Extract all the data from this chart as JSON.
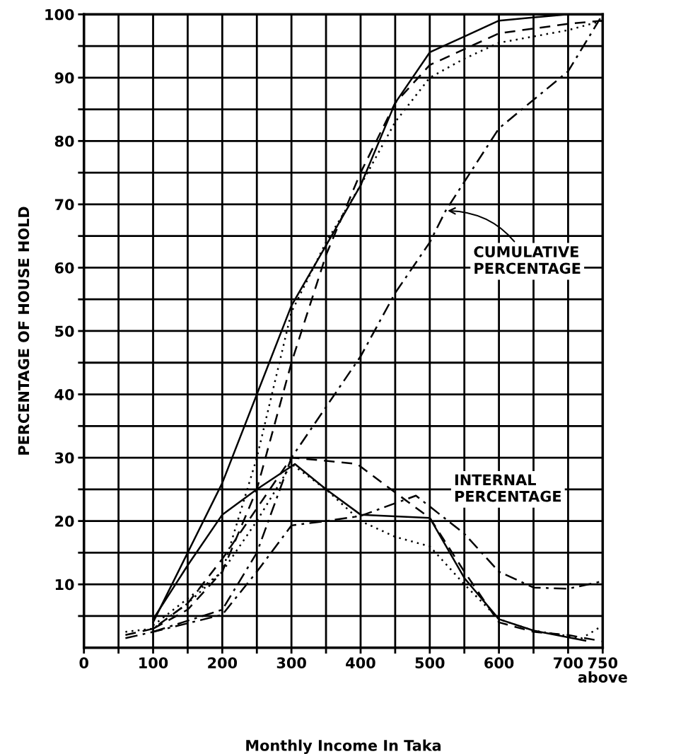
{
  "chart_data": {
    "type": "line",
    "xlabel": "Monthly Income In Taka",
    "ylabel": "PERCENTAGE OF HOUSE HOLD",
    "xlim": [
      0,
      750
    ],
    "ylim": [
      0,
      100
    ],
    "xticks": [
      0,
      {
        "value": 50,
        "label": null
      },
      100,
      {
        "value": 150,
        "label": null
      },
      200,
      {
        "value": 250,
        "label": null
      },
      300,
      {
        "value": 350,
        "label": null
      },
      400,
      {
        "value": 450,
        "label": null
      },
      500,
      {
        "value": 550,
        "label": null
      },
      600,
      {
        "value": 650,
        "label": null
      },
      700,
      {
        "value": 750,
        "label": "750 above"
      }
    ],
    "yticks": [
      {
        "value": 5,
        "label": null
      },
      10,
      {
        "value": 15,
        "label": null
      },
      20,
      {
        "value": 25,
        "label": null
      },
      30,
      {
        "value": 35,
        "label": null
      },
      40,
      {
        "value": 45,
        "label": null
      },
      50,
      {
        "value": 55,
        "label": null
      },
      60,
      {
        "value": 65,
        "label": null
      },
      70,
      {
        "value": 75,
        "label": null
      },
      80,
      {
        "value": 85,
        "label": null
      },
      90,
      {
        "value": 95,
        "label": null
      },
      100
    ],
    "grid": true,
    "marker": "none",
    "series": [
      {
        "color": "#000000",
        "line_style": "solid",
        "x": [
          100,
          200,
          300,
          400,
          450,
          500,
          550,
          600,
          700,
          750
        ],
        "values": [
          4,
          26,
          54,
          73,
          86,
          94,
          96.5,
          99,
          100,
          100
        ]
      },
      {
        "color": "#000000",
        "line_style": "dashed",
        "x": [
          100,
          150,
          200,
          250,
          300,
          350,
          400,
          450,
          500,
          600,
          700,
          750
        ],
        "values": [
          3,
          6,
          12,
          25,
          45,
          62,
          75,
          86,
          92,
          97,
          98.5,
          99
        ]
      },
      {
        "color": "#000000",
        "line_style": "dotted",
        "x": [
          100,
          200,
          250,
          300,
          350,
          400,
          450,
          500,
          550,
          600,
          700,
          750
        ],
        "values": [
          3.5,
          12,
          30,
          53,
          64,
          73,
          83,
          90,
          93,
          95.5,
          97.5,
          99
        ]
      },
      {
        "color": "#000000",
        "line_style": "dashdot",
        "x": [
          100,
          200,
          250,
          300,
          350,
          400,
          450,
          500,
          523,
          600,
          700,
          750
        ],
        "values": [
          2.5,
          6,
          15,
          30,
          38,
          46,
          56,
          64,
          69,
          82,
          91,
          100
        ]
      },
      {
        "color": "#000000",
        "line_style": "solid",
        "x": [
          100,
          150,
          200,
          250,
          305,
          350,
          400,
          500,
          550,
          600,
          650,
          725
        ],
        "values": [
          4.5,
          13,
          21,
          25,
          29,
          25,
          21,
          20.5,
          11,
          4.5,
          2.7,
          1.1
        ]
      },
      {
        "color": "#000000",
        "line_style": "dashed",
        "x": [
          60,
          100,
          150,
          200,
          250,
          300,
          350,
          395,
          450,
          500,
          550,
          600,
          650,
          700,
          750
        ],
        "values": [
          2,
          3,
          7,
          14,
          22,
          30,
          29.5,
          29,
          24.5,
          20.5,
          12,
          4,
          2.5,
          2,
          1
        ]
      },
      {
        "color": "#000000",
        "line_style": "dotted",
        "x": [
          60,
          100,
          150,
          200,
          250,
          300,
          350,
          400,
          450,
          500,
          550,
          600,
          650,
          720,
          750
        ],
        "values": [
          2.5,
          3,
          7,
          12,
          20,
          29,
          25,
          20,
          17.5,
          16,
          10,
          4.5,
          2.7,
          1.5,
          3.5
        ]
      },
      {
        "color": "#000000",
        "line_style": "dashdot",
        "x": [
          60,
          100,
          200,
          250,
          300,
          350,
          400,
          480,
          550,
          600,
          650,
          700,
          750
        ],
        "values": [
          1.5,
          2.5,
          5.2,
          12,
          19.3,
          20,
          20.8,
          24,
          18,
          12,
          9.5,
          9.3,
          10.5
        ]
      }
    ],
    "annotations": [
      {
        "text": "CUMULATIVE\nPERCENTAGE",
        "x": 523,
        "y": 69
      },
      "INTERNAL\nPERCENTAGE"
    ]
  }
}
